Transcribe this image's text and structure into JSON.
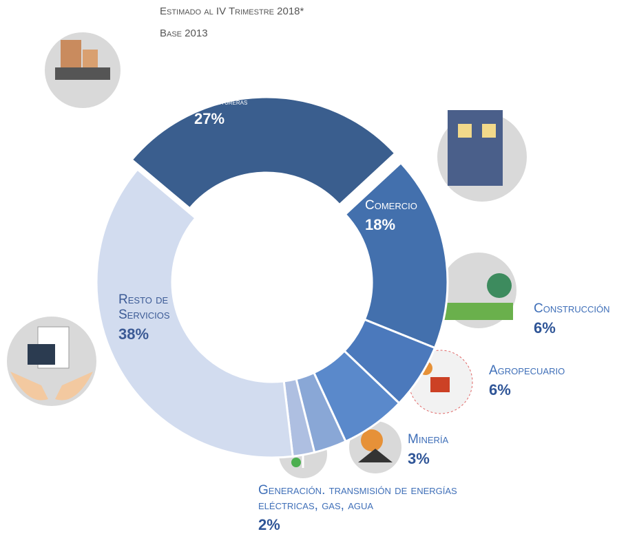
{
  "chart_data": {
    "type": "pie",
    "title": "Estimado al IV Trimestre 2018*",
    "subtitle": "Base 2013",
    "categories": [
      "Industrias manufactureras",
      "Comercio",
      "Construcción",
      "Agropecuario",
      "Minería",
      "Generación. transmisión de energías eléctricas, gas, agua",
      "Resto de Servicios"
    ],
    "values": [
      27,
      18,
      6,
      6,
      3,
      2,
      38
    ],
    "value_labels": [
      "27%",
      "18%",
      "6%",
      "6%",
      "3%",
      "2%",
      "38%"
    ],
    "colors": [
      "#3a5e8e",
      "#4370ad",
      "#4b79bc",
      "#5a89cb",
      "#89a7d6",
      "#aebfe1",
      "#d2dcef"
    ]
  }
}
